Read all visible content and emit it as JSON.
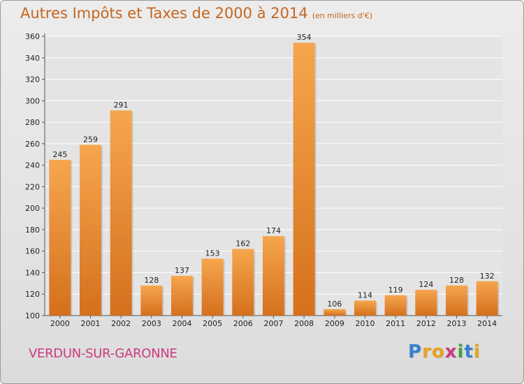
{
  "header": {
    "title": "Autres Impôts et Taxes de 2000 à 2014",
    "subtitle": "(en milliers d'€)"
  },
  "footer": {
    "city": "VERDUN-SUR-GARONNE",
    "logo_letters": [
      "P",
      "r",
      "o",
      "x",
      "i",
      "t",
      "i"
    ],
    "logo_colors": [
      "#3a7fd0",
      "#e8a21a",
      "#e8a21a",
      "#cc3b7e",
      "#3ea53e",
      "#3a7fd0",
      "#e8a21a"
    ]
  },
  "colors": {
    "bar_light": "#f6a64d",
    "bar_dark": "#d5701d",
    "grid": "#ffffff",
    "title": "#c4661f",
    "city": "#cc3b7e"
  },
  "chart_data": {
    "type": "bar",
    "title": "Autres Impôts et Taxes de 2000 à 2014",
    "xlabel": "",
    "ylabel": "",
    "categories": [
      "2000",
      "2001",
      "2002",
      "2003",
      "2004",
      "2005",
      "2006",
      "2007",
      "2008",
      "2009",
      "2010",
      "2011",
      "2012",
      "2013",
      "2014"
    ],
    "values": [
      245,
      259,
      291,
      128,
      137,
      153,
      162,
      174,
      354,
      106,
      114,
      119,
      124,
      128,
      132
    ],
    "ylim": [
      100,
      360
    ],
    "yticks": [
      100,
      120,
      140,
      160,
      180,
      200,
      220,
      240,
      260,
      280,
      300,
      320,
      340,
      360
    ],
    "grid": true,
    "legend": "none"
  }
}
